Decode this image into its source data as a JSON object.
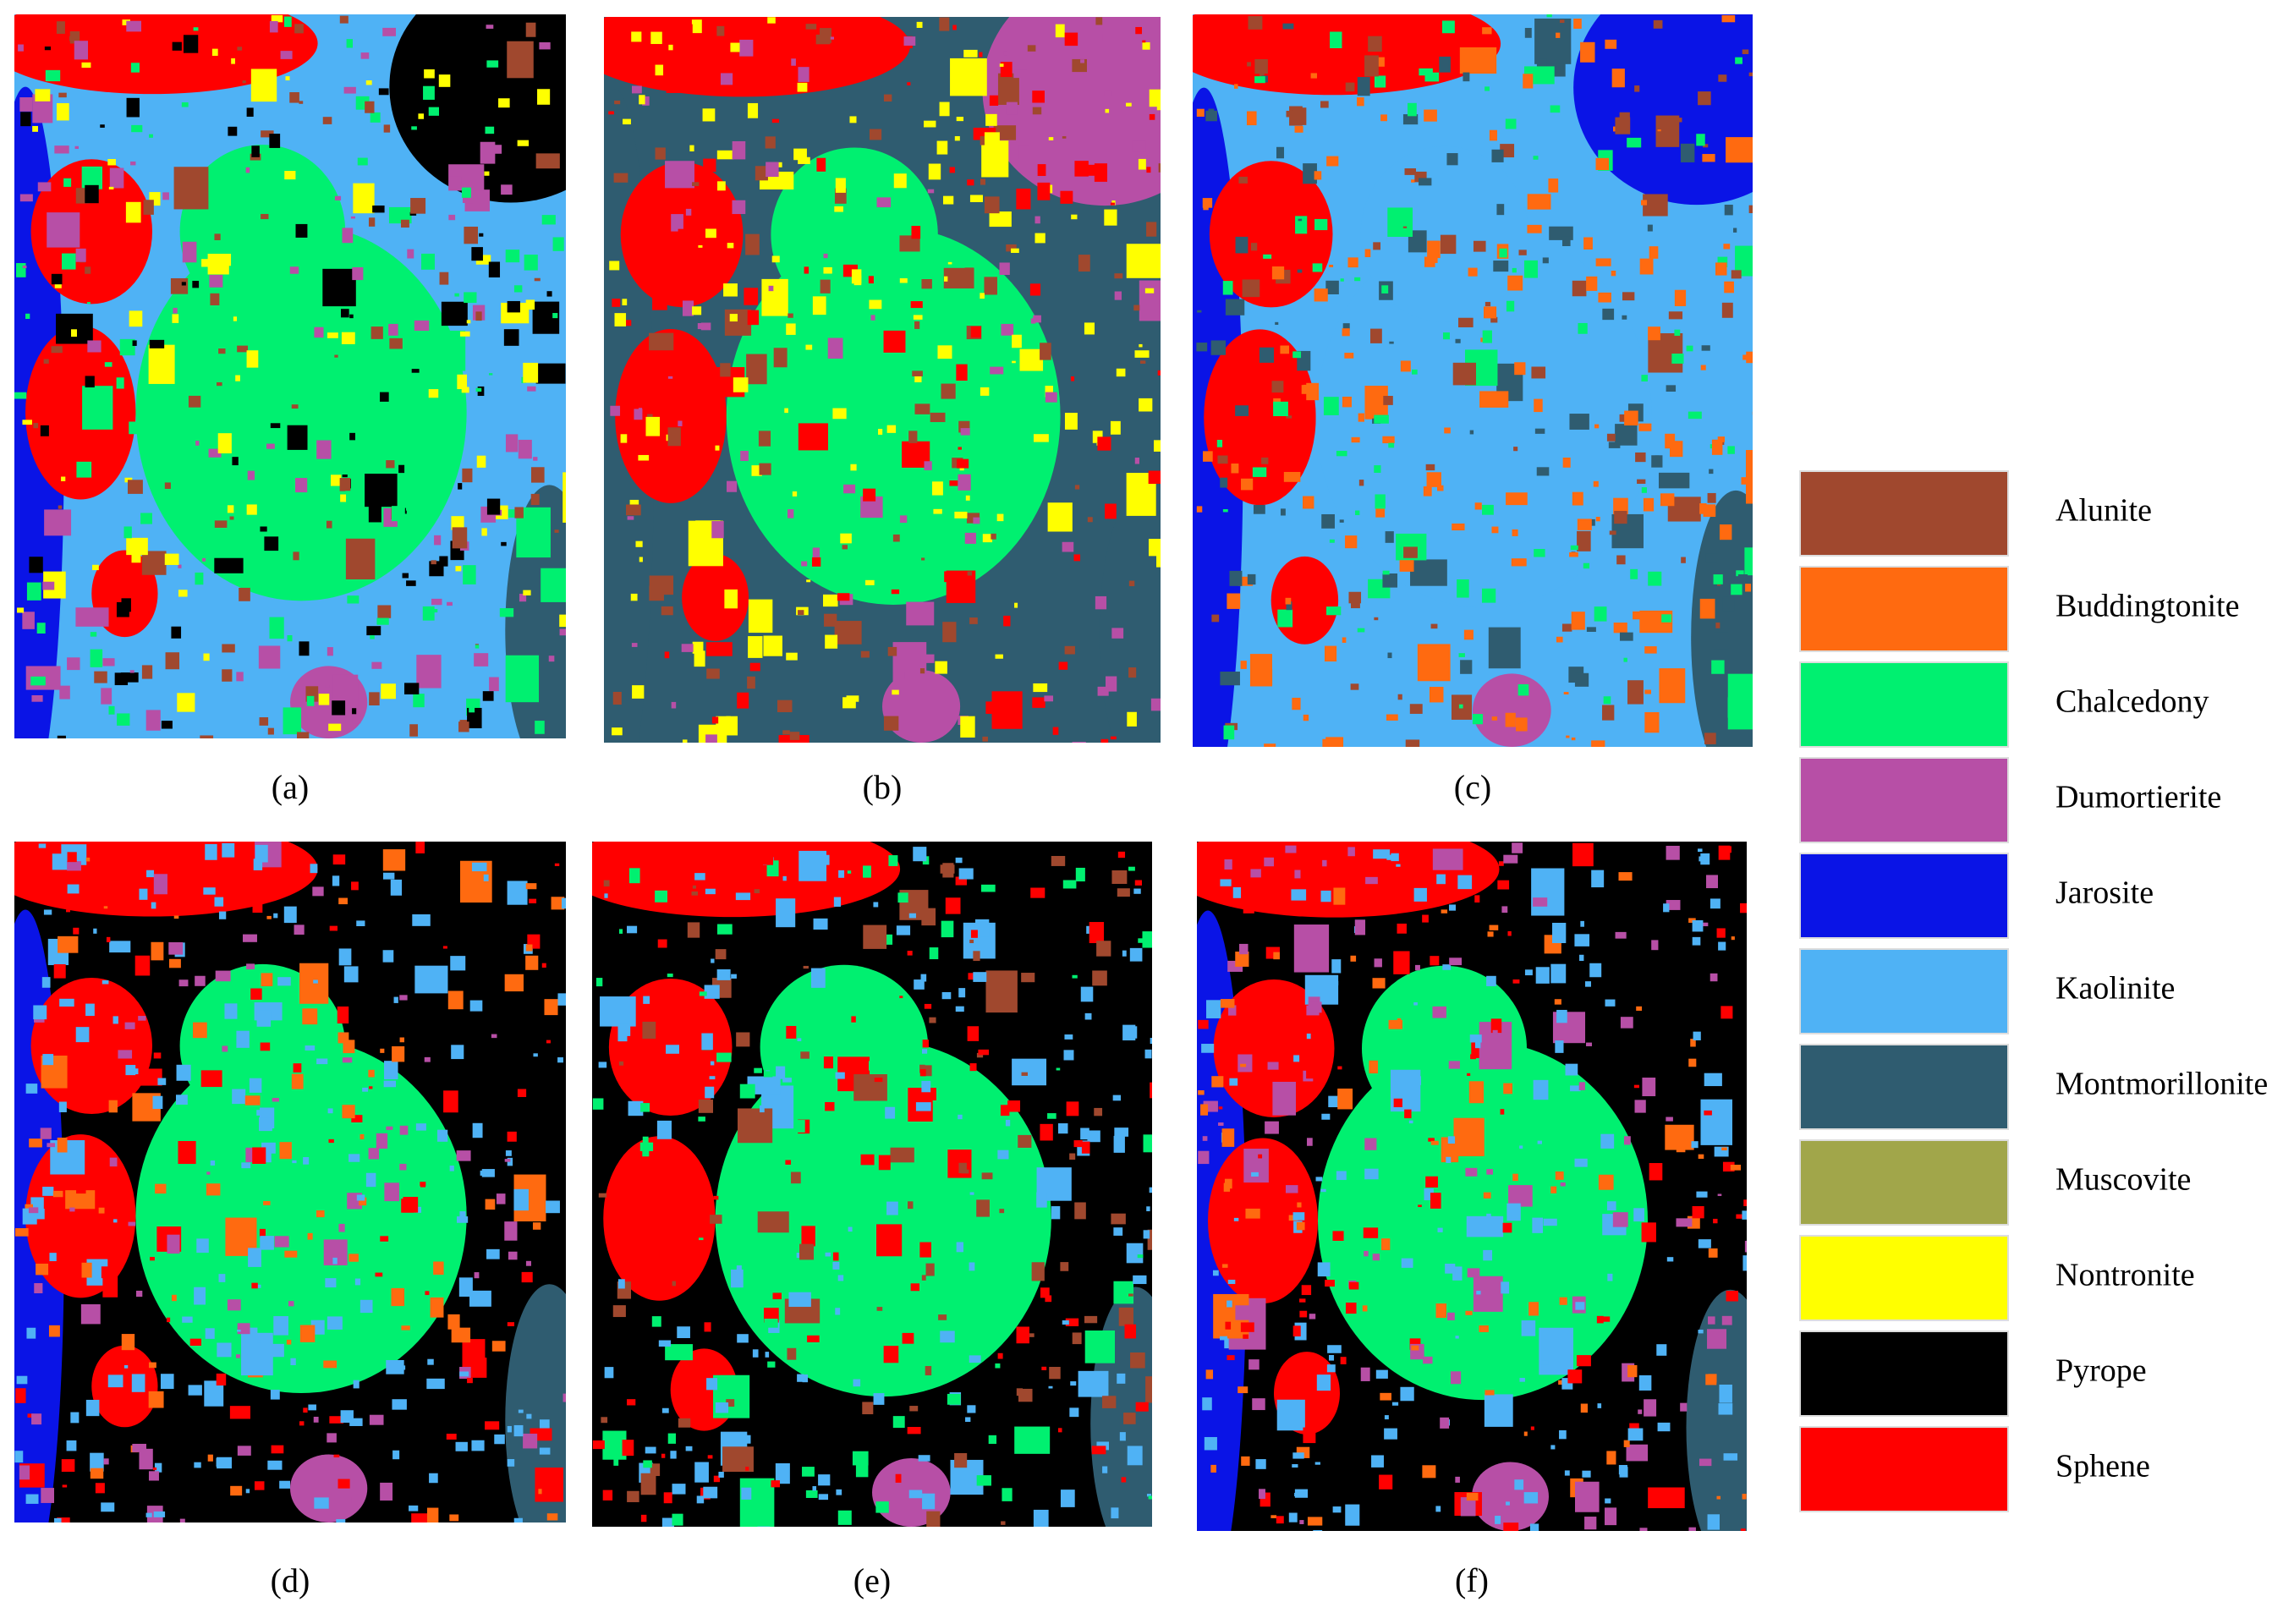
{
  "panels": [
    {
      "label": "(a)"
    },
    {
      "label": "(b)"
    },
    {
      "label": "(c)"
    },
    {
      "label": "(d)"
    },
    {
      "label": "(e)"
    },
    {
      "label": "(f)"
    }
  ],
  "legend": {
    "items": [
      {
        "label": "Alunite",
        "color": "#a0482e"
      },
      {
        "label": "Buddingtonite",
        "color": "#ff6a10"
      },
      {
        "label": "Chalcedony",
        "color": "#00f070"
      },
      {
        "label": "Dumortierite",
        "color": "#b74fa6"
      },
      {
        "label": "Jarosite",
        "color": "#0a14e6"
      },
      {
        "label": "Kaolinite",
        "color": "#4fb2f5"
      },
      {
        "label": "Montmorillonite",
        "color": "#2f5c70"
      },
      {
        "label": "Muscovite",
        "color": "#a1a64a"
      },
      {
        "label": "Nontronite",
        "color": "#ffff00"
      },
      {
        "label": "Pyrope",
        "color": "#000000"
      },
      {
        "label": "Sphene",
        "color": "#ff0000"
      }
    ]
  }
}
